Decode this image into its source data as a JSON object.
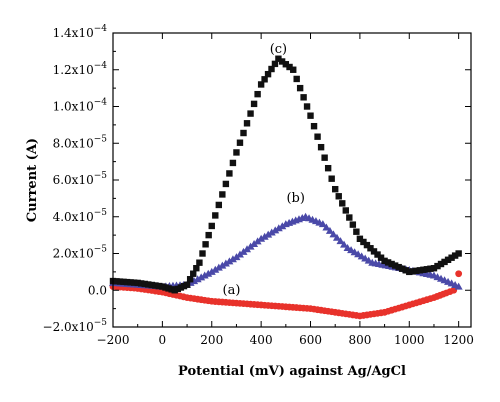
{
  "chart_data": {
    "type": "scatter",
    "xlabel": "Potential (mV) against Ag/AgCl",
    "ylabel": "Current (A)",
    "xlim": [
      -200,
      1250
    ],
    "ylim": [
      -2e-05,
      0.00014
    ],
    "x_ticks": [
      -200,
      0,
      200,
      400,
      600,
      800,
      1000,
      1200
    ],
    "y_ticks": [
      {
        "value": -2e-05,
        "mantissa": "−2.0x10",
        "exp": "−5"
      },
      {
        "value": 0.0,
        "mantissa": "0.0",
        "exp": ""
      },
      {
        "value": 2e-05,
        "mantissa": "2.0x10",
        "exp": "−5"
      },
      {
        "value": 4e-05,
        "mantissa": "4.0x10",
        "exp": "−5"
      },
      {
        "value": 6e-05,
        "mantissa": "6.0x10",
        "exp": "−5"
      },
      {
        "value": 8e-05,
        "mantissa": "8.0x10",
        "exp": "−5"
      },
      {
        "value": 0.0001,
        "mantissa": "1.0x10",
        "exp": "−4"
      },
      {
        "value": 0.00012,
        "mantissa": "1.2x10",
        "exp": "−4"
      },
      {
        "value": 0.00014,
        "mantissa": "1.4x10",
        "exp": "−4"
      }
    ],
    "series": [
      {
        "label": "(a)",
        "color": "#e8322b",
        "marker": "circle",
        "label_at": [
          280,
          -2e-06
        ],
        "points": [
          [
            -200,
            2e-06
          ],
          [
            -100,
            1e-06
          ],
          [
            0,
            -1e-06
          ],
          [
            100,
            -4e-06
          ],
          [
            200,
            -6e-06
          ],
          [
            300,
            -7e-06
          ],
          [
            400,
            -8e-06
          ],
          [
            500,
            -9e-06
          ],
          [
            600,
            -1e-05
          ],
          [
            700,
            -1.2e-05
          ],
          [
            800,
            -1.4e-05
          ],
          [
            900,
            -1.2e-05
          ],
          [
            1000,
            -8e-06
          ],
          [
            1100,
            -4e-06
          ],
          [
            1150,
            -1.5e-06
          ],
          [
            1180,
            0.0
          ],
          [
            1200,
            9e-06
          ]
        ]
      },
      {
        "label": "(b)",
        "color": "#4a49a8",
        "marker": "triangle",
        "label_at": [
          540,
          4.8e-05
        ],
        "points": [
          [
            -200,
            4e-06
          ],
          [
            -100,
            3e-06
          ],
          [
            0,
            2e-06
          ],
          [
            100,
            3e-06
          ],
          [
            200,
            1e-05
          ],
          [
            300,
            1.8e-05
          ],
          [
            400,
            2.8e-05
          ],
          [
            500,
            3.6e-05
          ],
          [
            580,
            4e-05
          ],
          [
            650,
            3.6e-05
          ],
          [
            750,
            2.3e-05
          ],
          [
            850,
            1.5e-05
          ],
          [
            1000,
            1.1e-05
          ],
          [
            1100,
            8e-06
          ],
          [
            1200,
            2e-06
          ]
        ]
      },
      {
        "label": "(c)",
        "color": "#111111",
        "marker": "square",
        "label_at": [
          470,
          0.000129
        ],
        "points": [
          [
            -200,
            5e-06
          ],
          [
            -100,
            4e-06
          ],
          [
            0,
            2e-06
          ],
          [
            50,
            0.0
          ],
          [
            100,
            3e-06
          ],
          [
            150,
            1.5e-05
          ],
          [
            200,
            3.5e-05
          ],
          [
            300,
            7.5e-05
          ],
          [
            400,
            0.000112
          ],
          [
            470,
            0.000126
          ],
          [
            530,
            0.00012
          ],
          [
            600,
            9.5e-05
          ],
          [
            700,
            5.5e-05
          ],
          [
            800,
            2.8e-05
          ],
          [
            900,
            1.6e-05
          ],
          [
            1000,
            1e-05
          ],
          [
            1100,
            1.2e-05
          ],
          [
            1200,
            2e-05
          ]
        ]
      }
    ]
  }
}
